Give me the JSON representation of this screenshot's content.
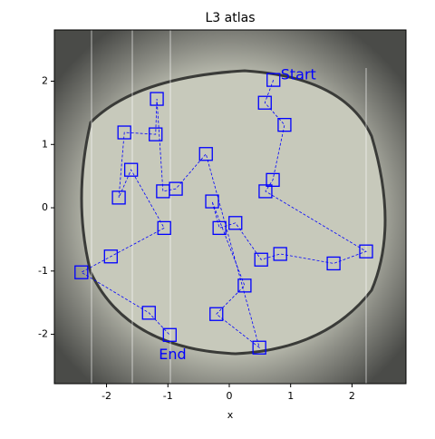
{
  "chart_data": {
    "type": "line",
    "title": "L3 atlas",
    "xlabel": "x",
    "x": [
      0.72,
      0.58,
      0.9,
      0.71,
      0.59,
      2.23,
      1.7,
      0.83,
      0.52,
      0.1,
      -0.16,
      -0.28,
      0.25,
      -0.21,
      0.49,
      -0.38,
      -0.87,
      -1.08,
      -1.18,
      -1.2,
      -1.71,
      -1.8,
      -1.6,
      -1.06,
      -1.93,
      -2.41,
      -1.31,
      -0.97
    ],
    "values": [
      2.02,
      1.66,
      1.31,
      0.44,
      0.26,
      -0.69,
      -0.88,
      -0.73,
      -0.82,
      -0.24,
      -0.32,
      0.1,
      -1.23,
      -1.68,
      -2.21,
      0.85,
      0.3,
      0.26,
      1.72,
      1.16,
      1.19,
      0.16,
      0.6,
      -0.32,
      -0.77,
      -1.02,
      -1.66,
      -2.01
    ],
    "color": "#0000ff",
    "annotations": [
      "Start",
      "End"
    ],
    "xlim": [
      -2.85,
      2.88
    ],
    "ylim": [
      -2.78,
      2.81
    ],
    "xticks": [
      -2,
      -1,
      0,
      1,
      2
    ],
    "yticks": [
      -2,
      -1,
      0,
      1,
      2
    ]
  }
}
